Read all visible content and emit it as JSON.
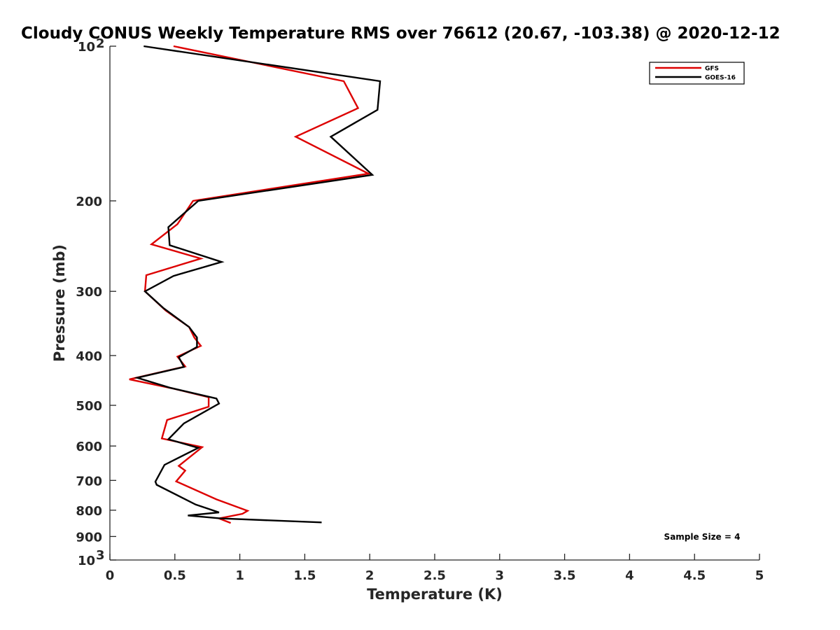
{
  "chart_data": {
    "type": "line",
    "title": "Cloudy CONUS Weekly Temperature RMS over 76612 (20.67, -103.38) @ 2020-12-12",
    "xlabel": "Temperature (K)",
    "ylabel": "Pressure (mb)",
    "xlim": [
      0,
      5
    ],
    "ylim": [
      100,
      1000
    ],
    "yscale": "log",
    "y_reversed": true,
    "grid": false,
    "x_ticks": [
      {
        "value": 0,
        "label": "0"
      },
      {
        "value": 0.5,
        "label": "0.5"
      },
      {
        "value": 1,
        "label": "1"
      },
      {
        "value": 1.5,
        "label": "1.5"
      },
      {
        "value": 2,
        "label": "2"
      },
      {
        "value": 2.5,
        "label": "2.5"
      },
      {
        "value": 3,
        "label": "3"
      },
      {
        "value": 3.5,
        "label": "3.5"
      },
      {
        "value": 4,
        "label": "4"
      },
      {
        "value": 4.5,
        "label": "4.5"
      },
      {
        "value": 5,
        "label": "5"
      }
    ],
    "y_ticks": [
      {
        "value": 100,
        "label": "10",
        "sup": "2"
      },
      {
        "value": 200,
        "label": "200"
      },
      {
        "value": 300,
        "label": "300"
      },
      {
        "value": 400,
        "label": "400"
      },
      {
        "value": 500,
        "label": "500"
      },
      {
        "value": 600,
        "label": "600"
      },
      {
        "value": 700,
        "label": "700"
      },
      {
        "value": 800,
        "label": "800"
      },
      {
        "value": 900,
        "label": "900"
      },
      {
        "value": 1000,
        "label": "10",
        "sup": "3"
      }
    ],
    "legend": {
      "position": "top-right"
    },
    "annotation": "Sample Size = 4",
    "series": [
      {
        "name": "GFS",
        "color": "#dd0000",
        "points": [
          [
            0.49,
            100
          ],
          [
            1.8,
            117
          ],
          [
            1.91,
            132
          ],
          [
            1.43,
            150
          ],
          [
            1.99,
            177
          ],
          [
            0.64,
            200
          ],
          [
            0.52,
            222
          ],
          [
            0.32,
            243
          ],
          [
            0.7,
            259
          ],
          [
            0.28,
            279
          ],
          [
            0.27,
            300
          ],
          [
            0.43,
            327
          ],
          [
            0.61,
            352
          ],
          [
            0.65,
            369
          ],
          [
            0.7,
            383
          ],
          [
            0.52,
            402
          ],
          [
            0.58,
            420
          ],
          [
            0.15,
            445
          ],
          [
            0.49,
            464
          ],
          [
            0.76,
            482
          ],
          [
            0.76,
            503
          ],
          [
            0.44,
            534
          ],
          [
            0.4,
            580
          ],
          [
            0.71,
            603
          ],
          [
            0.53,
            656
          ],
          [
            0.58,
            670
          ],
          [
            0.51,
            703
          ],
          [
            0.82,
            762
          ],
          [
            1.06,
            802
          ],
          [
            1.02,
            813
          ],
          [
            0.84,
            830
          ],
          [
            0.93,
            847
          ]
        ]
      },
      {
        "name": "GOES-16",
        "color": "#000000",
        "points": [
          [
            0.26,
            100
          ],
          [
            2.08,
            117
          ],
          [
            2.06,
            133
          ],
          [
            1.7,
            150
          ],
          [
            2.02,
            178
          ],
          [
            0.68,
            200
          ],
          [
            0.45,
            225
          ],
          [
            0.46,
            244
          ],
          [
            0.86,
            263
          ],
          [
            0.49,
            280
          ],
          [
            0.27,
            300
          ],
          [
            0.41,
            323
          ],
          [
            0.61,
            352
          ],
          [
            0.67,
            369
          ],
          [
            0.67,
            385
          ],
          [
            0.53,
            403
          ],
          [
            0.57,
            421
          ],
          [
            0.21,
            442
          ],
          [
            0.46,
            462
          ],
          [
            0.82,
            485
          ],
          [
            0.84,
            496
          ],
          [
            0.57,
            542
          ],
          [
            0.45,
            582
          ],
          [
            0.68,
            605
          ],
          [
            0.42,
            653
          ],
          [
            0.35,
            704
          ],
          [
            0.36,
            714
          ],
          [
            0.66,
            780
          ],
          [
            0.84,
            808
          ],
          [
            0.6,
            819
          ],
          [
            0.85,
            830
          ],
          [
            1.63,
            845
          ]
        ]
      }
    ]
  }
}
